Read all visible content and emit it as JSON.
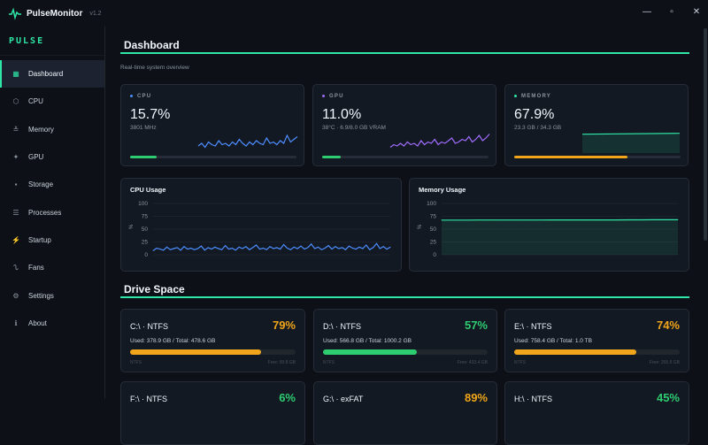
{
  "window": {
    "title": "PulseMonitor",
    "version": "v1.2"
  },
  "sidebar": {
    "brand": "PULSE",
    "items": [
      {
        "label": "Dashboard",
        "icon": "grid-icon",
        "glyph": "▦",
        "active": true
      },
      {
        "label": "CPU",
        "icon": "cpu-icon",
        "glyph": "⬡"
      },
      {
        "label": "Memory",
        "icon": "memory-icon",
        "glyph": "≚"
      },
      {
        "label": "GPU",
        "icon": "gpu-icon",
        "glyph": "✦"
      },
      {
        "label": "Storage",
        "icon": "storage-icon",
        "glyph": "▪"
      },
      {
        "label": "Processes",
        "icon": "list-icon",
        "glyph": "☰"
      },
      {
        "label": "Startup",
        "icon": "bolt-icon",
        "glyph": "⚡"
      },
      {
        "label": "Fans",
        "icon": "fan-icon",
        "glyph": "ᔐ"
      },
      {
        "label": "Settings",
        "icon": "gear-icon",
        "glyph": "⚙"
      },
      {
        "label": "About",
        "icon": "info-icon",
        "glyph": "ℹ"
      }
    ]
  },
  "dashboard": {
    "title": "Dashboard",
    "subtitle": "Real-time system overview",
    "stats": [
      {
        "label": "CPU",
        "value": "15.7%",
        "sub": "3801 MHz",
        "percent": 15.7,
        "color": "#4c8dff",
        "bar_color": "#2ecc71"
      },
      {
        "label": "GPU",
        "value": "11.0%",
        "sub": "38°C  ·  6.9/8.0 GB VRAM",
        "percent": 11.0,
        "color": "#a06cff",
        "bar_color": "#2ecc71"
      },
      {
        "label": "MEMORY",
        "value": "67.9%",
        "sub": "23.3 GB / 34.3 GB",
        "percent": 67.9,
        "color": "#2ee6a6",
        "bar_color": "#f0a51a"
      }
    ]
  },
  "charts": {
    "cpu": {
      "title": "CPU Usage",
      "ylabel": "%",
      "ticks": [
        "100",
        "75",
        "50",
        "25",
        "0"
      ]
    },
    "memory": {
      "title": "Memory Usage",
      "ylabel": "%",
      "ticks": [
        "100",
        "75",
        "50",
        "25",
        "0"
      ]
    }
  },
  "chart_data": [
    {
      "type": "line",
      "title": "CPU Usage",
      "ylabel": "%",
      "ylim": [
        0,
        100
      ],
      "grid": true,
      "color": "#4c8dff",
      "values": [
        8,
        13,
        11,
        9,
        15,
        10,
        12,
        14,
        9,
        16,
        11,
        13,
        10,
        12,
        17,
        9,
        14,
        11,
        15,
        12,
        10,
        18,
        11,
        13,
        9,
        15,
        12,
        16,
        10,
        14,
        19,
        11,
        13,
        10,
        16,
        12,
        14,
        11,
        20,
        13,
        10,
        15,
        12,
        17,
        11,
        14,
        21,
        12,
        15,
        10,
        13,
        18,
        11,
        16,
        12,
        14,
        10,
        17,
        13,
        11,
        15,
        12,
        19,
        10,
        14,
        22,
        12,
        16,
        11,
        15
      ]
    },
    {
      "type": "area",
      "title": "Memory Usage",
      "ylabel": "%",
      "ylim": [
        0,
        100
      ],
      "grid": true,
      "color": "#2ee6a6",
      "values": [
        67.5,
        67.6,
        67.6,
        67.7,
        67.7,
        67.7,
        67.8,
        67.8,
        67.8,
        67.9,
        67.9,
        67.9,
        68.0,
        68.0,
        68.0,
        68.1,
        68.1,
        68.2,
        68.2,
        68.3
      ]
    }
  ],
  "drive_section": {
    "title": "Drive Space",
    "drives": [
      {
        "name": "C:\\  ·  NTFS",
        "pct": "79%",
        "percent": 79,
        "used": "Used: 378.9 GB  /  Total: 478.6 GB",
        "fs": "NTFS",
        "free": "Free: 99.8 GB",
        "color": "#f0a51a"
      },
      {
        "name": "D:\\  ·  NTFS",
        "pct": "57%",
        "percent": 57,
        "used": "Used: 566.8 GB  /  Total: 1000.2 GB",
        "fs": "NTFS",
        "free": "Free: 433.4 GB",
        "color": "#2ecc71"
      },
      {
        "name": "E:\\  ·  NTFS",
        "pct": "74%",
        "percent": 74,
        "used": "Used: 758.4 GB  /  Total: 1.0 TB",
        "fs": "NTFS",
        "free": "Free: 265.6 GB",
        "color": "#f0a51a"
      },
      {
        "name": "F:\\  ·  NTFS",
        "pct": "6%",
        "percent": 6,
        "color": "#2ecc71"
      },
      {
        "name": "G:\\  ·  exFAT",
        "pct": "89%",
        "percent": 89,
        "color": "#f0a51a"
      },
      {
        "name": "H:\\  ·  NTFS",
        "pct": "45%",
        "percent": 45,
        "color": "#2ecc71"
      }
    ]
  }
}
